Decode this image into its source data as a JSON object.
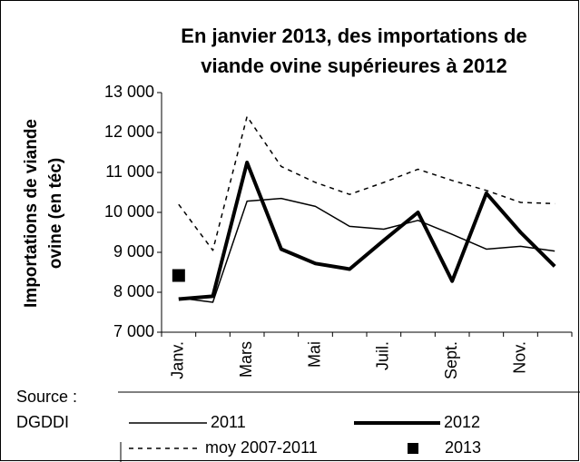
{
  "chart_data": {
    "type": "line",
    "title": [
      "En  janvier 2013, des importations de",
      "viande ovine supérieures à 2012"
    ],
    "ylabel": [
      "Importations de viande",
      "ovine (en téc)"
    ],
    "source": [
      "Source :",
      "DGDDI"
    ],
    "categories": [
      "Janv.",
      null,
      "Mars",
      null,
      "Mai",
      null,
      "Juil.",
      null,
      "Sept.",
      null,
      "Nov.",
      null
    ],
    "series": [
      {
        "name": "2011",
        "color": "#000000",
        "width": 1.5,
        "dash": false,
        "values": [
          7860,
          7750,
          10280,
          10350,
          10150,
          9650,
          9580,
          9800,
          9450,
          9080,
          9150,
          9030
        ]
      },
      {
        "name": "2012",
        "color": "#000000",
        "width": 4,
        "dash": false,
        "values": [
          7830,
          7900,
          11250,
          9080,
          8720,
          8580,
          9300,
          10000,
          8280,
          10480,
          9500,
          8650
        ]
      },
      {
        "name": "moy 2007-2011",
        "color": "#000000",
        "width": 1.5,
        "dash": true,
        "values": [
          10200,
          9050,
          12400,
          11150,
          10750,
          10450,
          10750,
          11080,
          10800,
          10550,
          10250,
          10220
        ]
      },
      {
        "name": "2013",
        "color": "#000000",
        "marker": "square",
        "values": [
          8420,
          null,
          null,
          null,
          null,
          null,
          null,
          null,
          null,
          null,
          null,
          null
        ]
      }
    ],
    "ylim": [
      7000,
      13000
    ],
    "yticks": [
      {
        "value": 7000,
        "label": "7 000"
      },
      {
        "value": 8000,
        "label": "8 000"
      },
      {
        "value": 9000,
        "label": "9 000"
      },
      {
        "value": 10000,
        "label": "10 000"
      },
      {
        "value": 11000,
        "label": "11 000"
      },
      {
        "value": 12000,
        "label": "12 000"
      },
      {
        "value": 13000,
        "label": "13 000"
      }
    ],
    "grid": false
  }
}
